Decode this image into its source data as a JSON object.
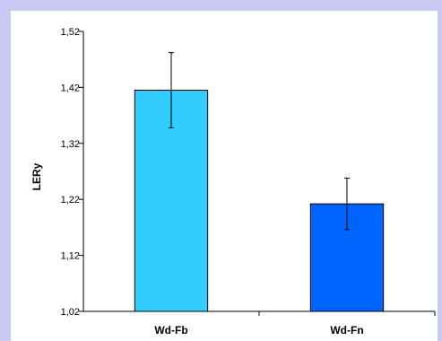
{
  "chart_data": {
    "type": "bar",
    "categories": [
      "Wd-Fb",
      "Wd-Fn"
    ],
    "values": [
      1.415,
      1.212
    ],
    "error_low": [
      1.348,
      1.166
    ],
    "error_high": [
      1.482,
      1.258
    ],
    "bar_colors": [
      "#33ccff",
      "#0066ff"
    ],
    "ylabel": "LERy",
    "xlabel": "",
    "ylim": [
      1.02,
      1.52
    ],
    "y_ticks": [
      1.02,
      1.12,
      1.22,
      1.32,
      1.42,
      1.52
    ],
    "y_tick_labels": [
      "1,02",
      "1,12",
      "1,22",
      "1,32",
      "1,42",
      "1,52"
    ],
    "grid": false,
    "legend": "none"
  },
  "colors": {
    "frame_background": "#c9c9f3",
    "plot_background": "#ffffff"
  }
}
